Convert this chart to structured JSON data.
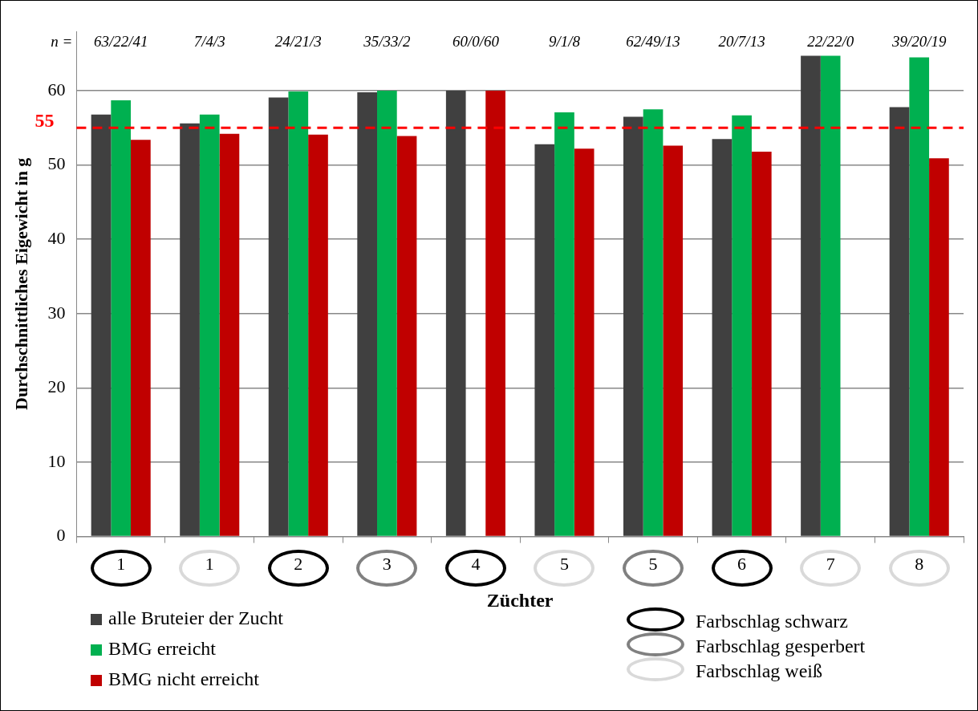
{
  "chart_data": {
    "type": "bar",
    "xlabel": "Züchter",
    "ylabel": "Durchschnittliches Eigewicht in g",
    "categories": [
      "1",
      "1",
      "2",
      "3",
      "4",
      "5",
      "5",
      "6",
      "7",
      "8"
    ],
    "series": [
      {
        "name": "alle Bruteier der Zucht",
        "color": "#404040",
        "values": [
          56.8,
          55.6,
          59.1,
          59.8,
          60.0,
          52.8,
          56.5,
          53.5,
          64.7,
          57.8
        ]
      },
      {
        "name": "BMG erreicht",
        "color": "#00b050",
        "values": [
          58.7,
          56.8,
          59.9,
          60.0,
          null,
          57.1,
          57.5,
          56.7,
          64.7,
          64.5
        ]
      },
      {
        "name": "BMG nicht erreicht",
        "color": "#c00000",
        "values": [
          53.4,
          54.2,
          54.1,
          53.9,
          60.0,
          52.2,
          52.6,
          51.8,
          null,
          50.9
        ]
      }
    ],
    "ylim": [
      0,
      68
    ],
    "yticks": [
      0,
      10,
      20,
      30,
      40,
      50,
      60
    ],
    "grid": "y",
    "legend": "bottom left",
    "ref_lines": [
      {
        "axis": "y",
        "value": 55,
        "label": "55",
        "color": "#ff0000",
        "line_style": "dashed"
      }
    ],
    "annotations": [
      "n =",
      "63/22/41",
      "7/4/3",
      "24/21/3",
      "35/33/2",
      "60/0/60",
      "9/1/8",
      "62/49/13",
      "20/7/13",
      "22/22/0",
      "39/20/19",
      "Farbschlag schwarz",
      "Farbschlag gesperbert",
      "Farbschlag weiß"
    ]
  }
}
